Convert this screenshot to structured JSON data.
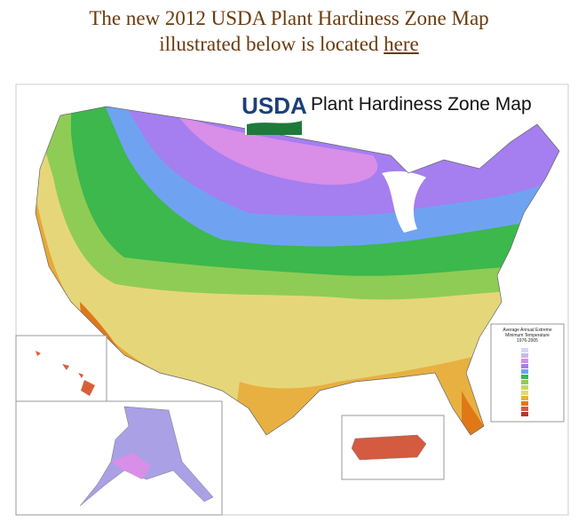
{
  "header": {
    "line1": "The new 2012 USDA Plant Hardiness Zone Map",
    "line2_prefix": "illustrated below is located",
    "link": "here"
  },
  "map": {
    "logo": "USDA",
    "title": "Plant Hardiness Zone Map",
    "legend": {
      "title": "Average Annual Extreme",
      "subtitle": "Minimum Temperature",
      "period": "1976-2005"
    }
  }
}
